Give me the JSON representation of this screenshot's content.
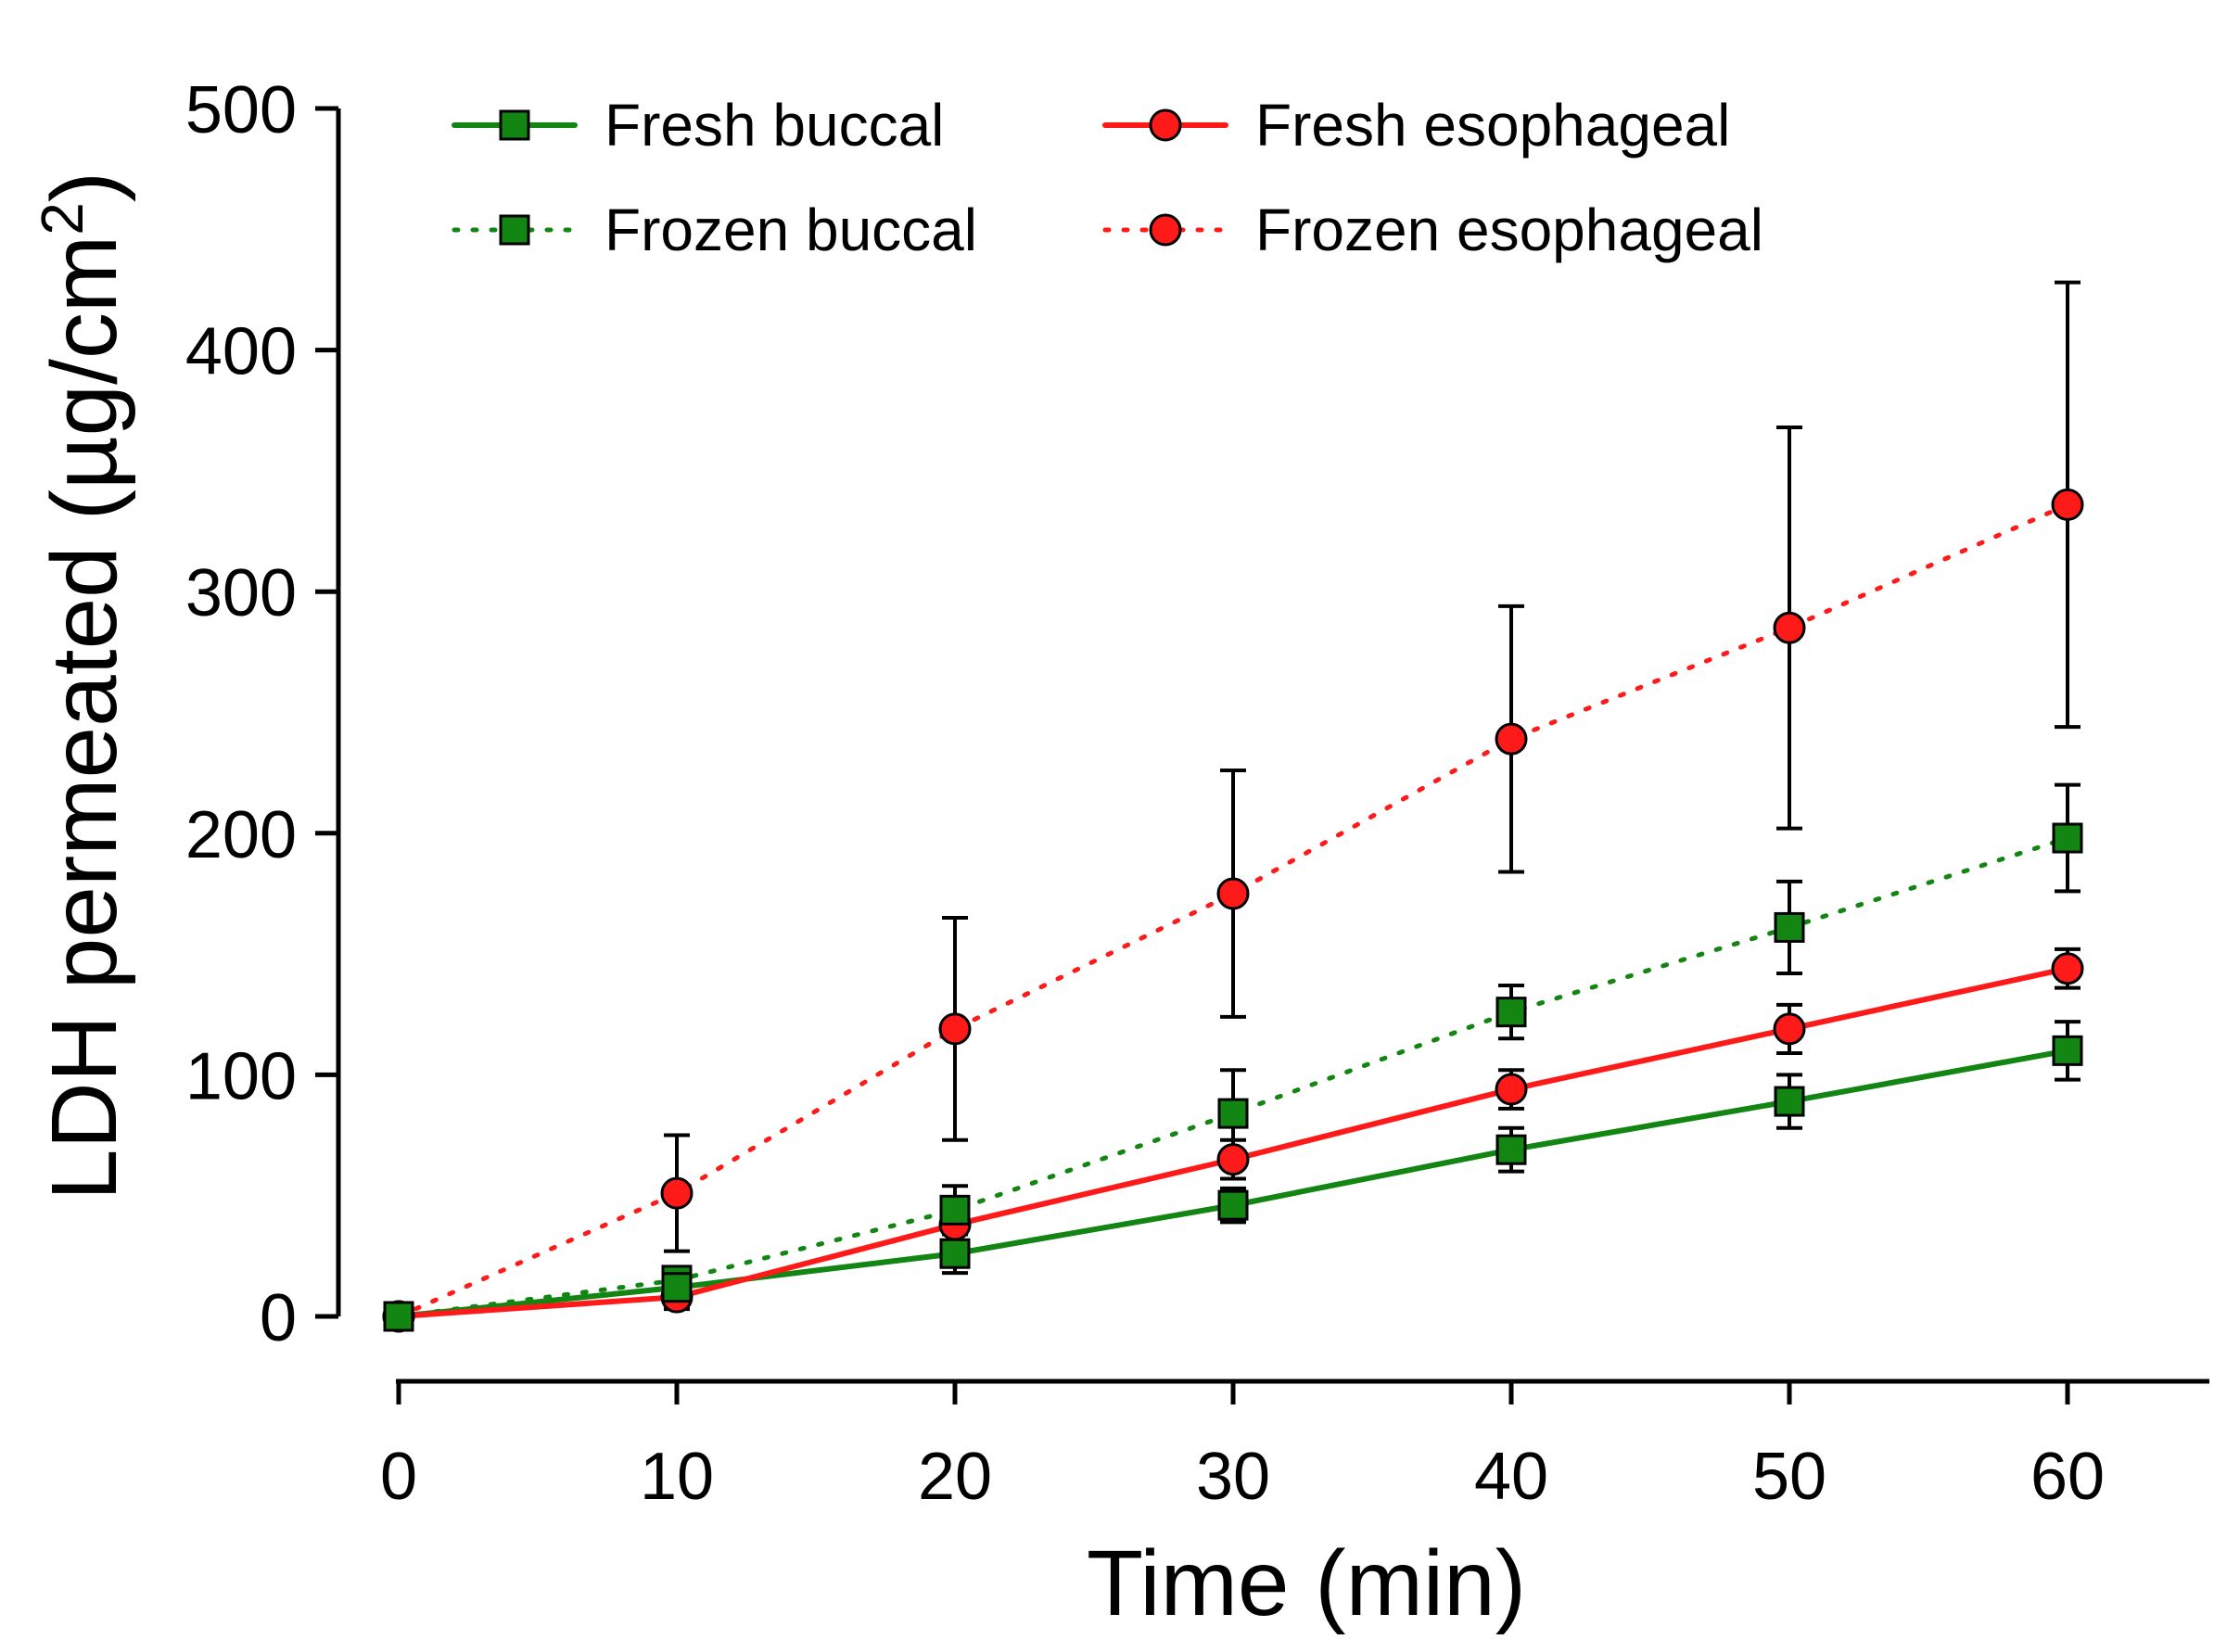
{
  "chart_data": {
    "type": "line",
    "title": "",
    "xlabel": "Time (min)",
    "ylabel_main": "LDH permeated (µg/cm",
    "ylabel_sup": "2",
    "ylabel_close": ")",
    "x": [
      0,
      10,
      20,
      30,
      40,
      50,
      60
    ],
    "xticks": [
      "0",
      "10",
      "20",
      "30",
      "40",
      "50",
      "60"
    ],
    "yticks": [
      "0",
      "100",
      "200",
      "300",
      "400",
      "500"
    ],
    "xlim": [
      0,
      65
    ],
    "ylim": [
      0,
      500
    ],
    "grid": false,
    "legend_position": "top",
    "series": [
      {
        "name": "Fresh buccal",
        "values": [
          0,
          12,
          26,
          46,
          69,
          89,
          110
        ],
        "errors": [
          0,
          6,
          8,
          7,
          9,
          11,
          12
        ],
        "color": "#138513",
        "marker": "square",
        "line_style": "solid"
      },
      {
        "name": "Frozen buccal",
        "values": [
          0,
          15,
          44,
          84,
          126,
          161,
          198
        ],
        "errors": [
          0,
          5,
          10,
          18,
          11,
          19,
          22
        ],
        "color": "#138513",
        "marker": "square",
        "line_style": "dotted"
      },
      {
        "name": "Fresh esophageal",
        "values": [
          0,
          8,
          38,
          65,
          94,
          119,
          144
        ],
        "errors": [
          0,
          5,
          7,
          8,
          8,
          10,
          8
        ],
        "color": "#ff1a1a",
        "marker": "circle",
        "line_style": "solid"
      },
      {
        "name": "Frozen esophageal",
        "values": [
          0,
          51,
          119,
          175,
          239,
          285,
          336
        ],
        "errors": [
          0,
          24,
          46,
          51,
          55,
          83,
          92
        ],
        "color": "#ff1a1a",
        "marker": "circle",
        "line_style": "dotted"
      }
    ]
  }
}
